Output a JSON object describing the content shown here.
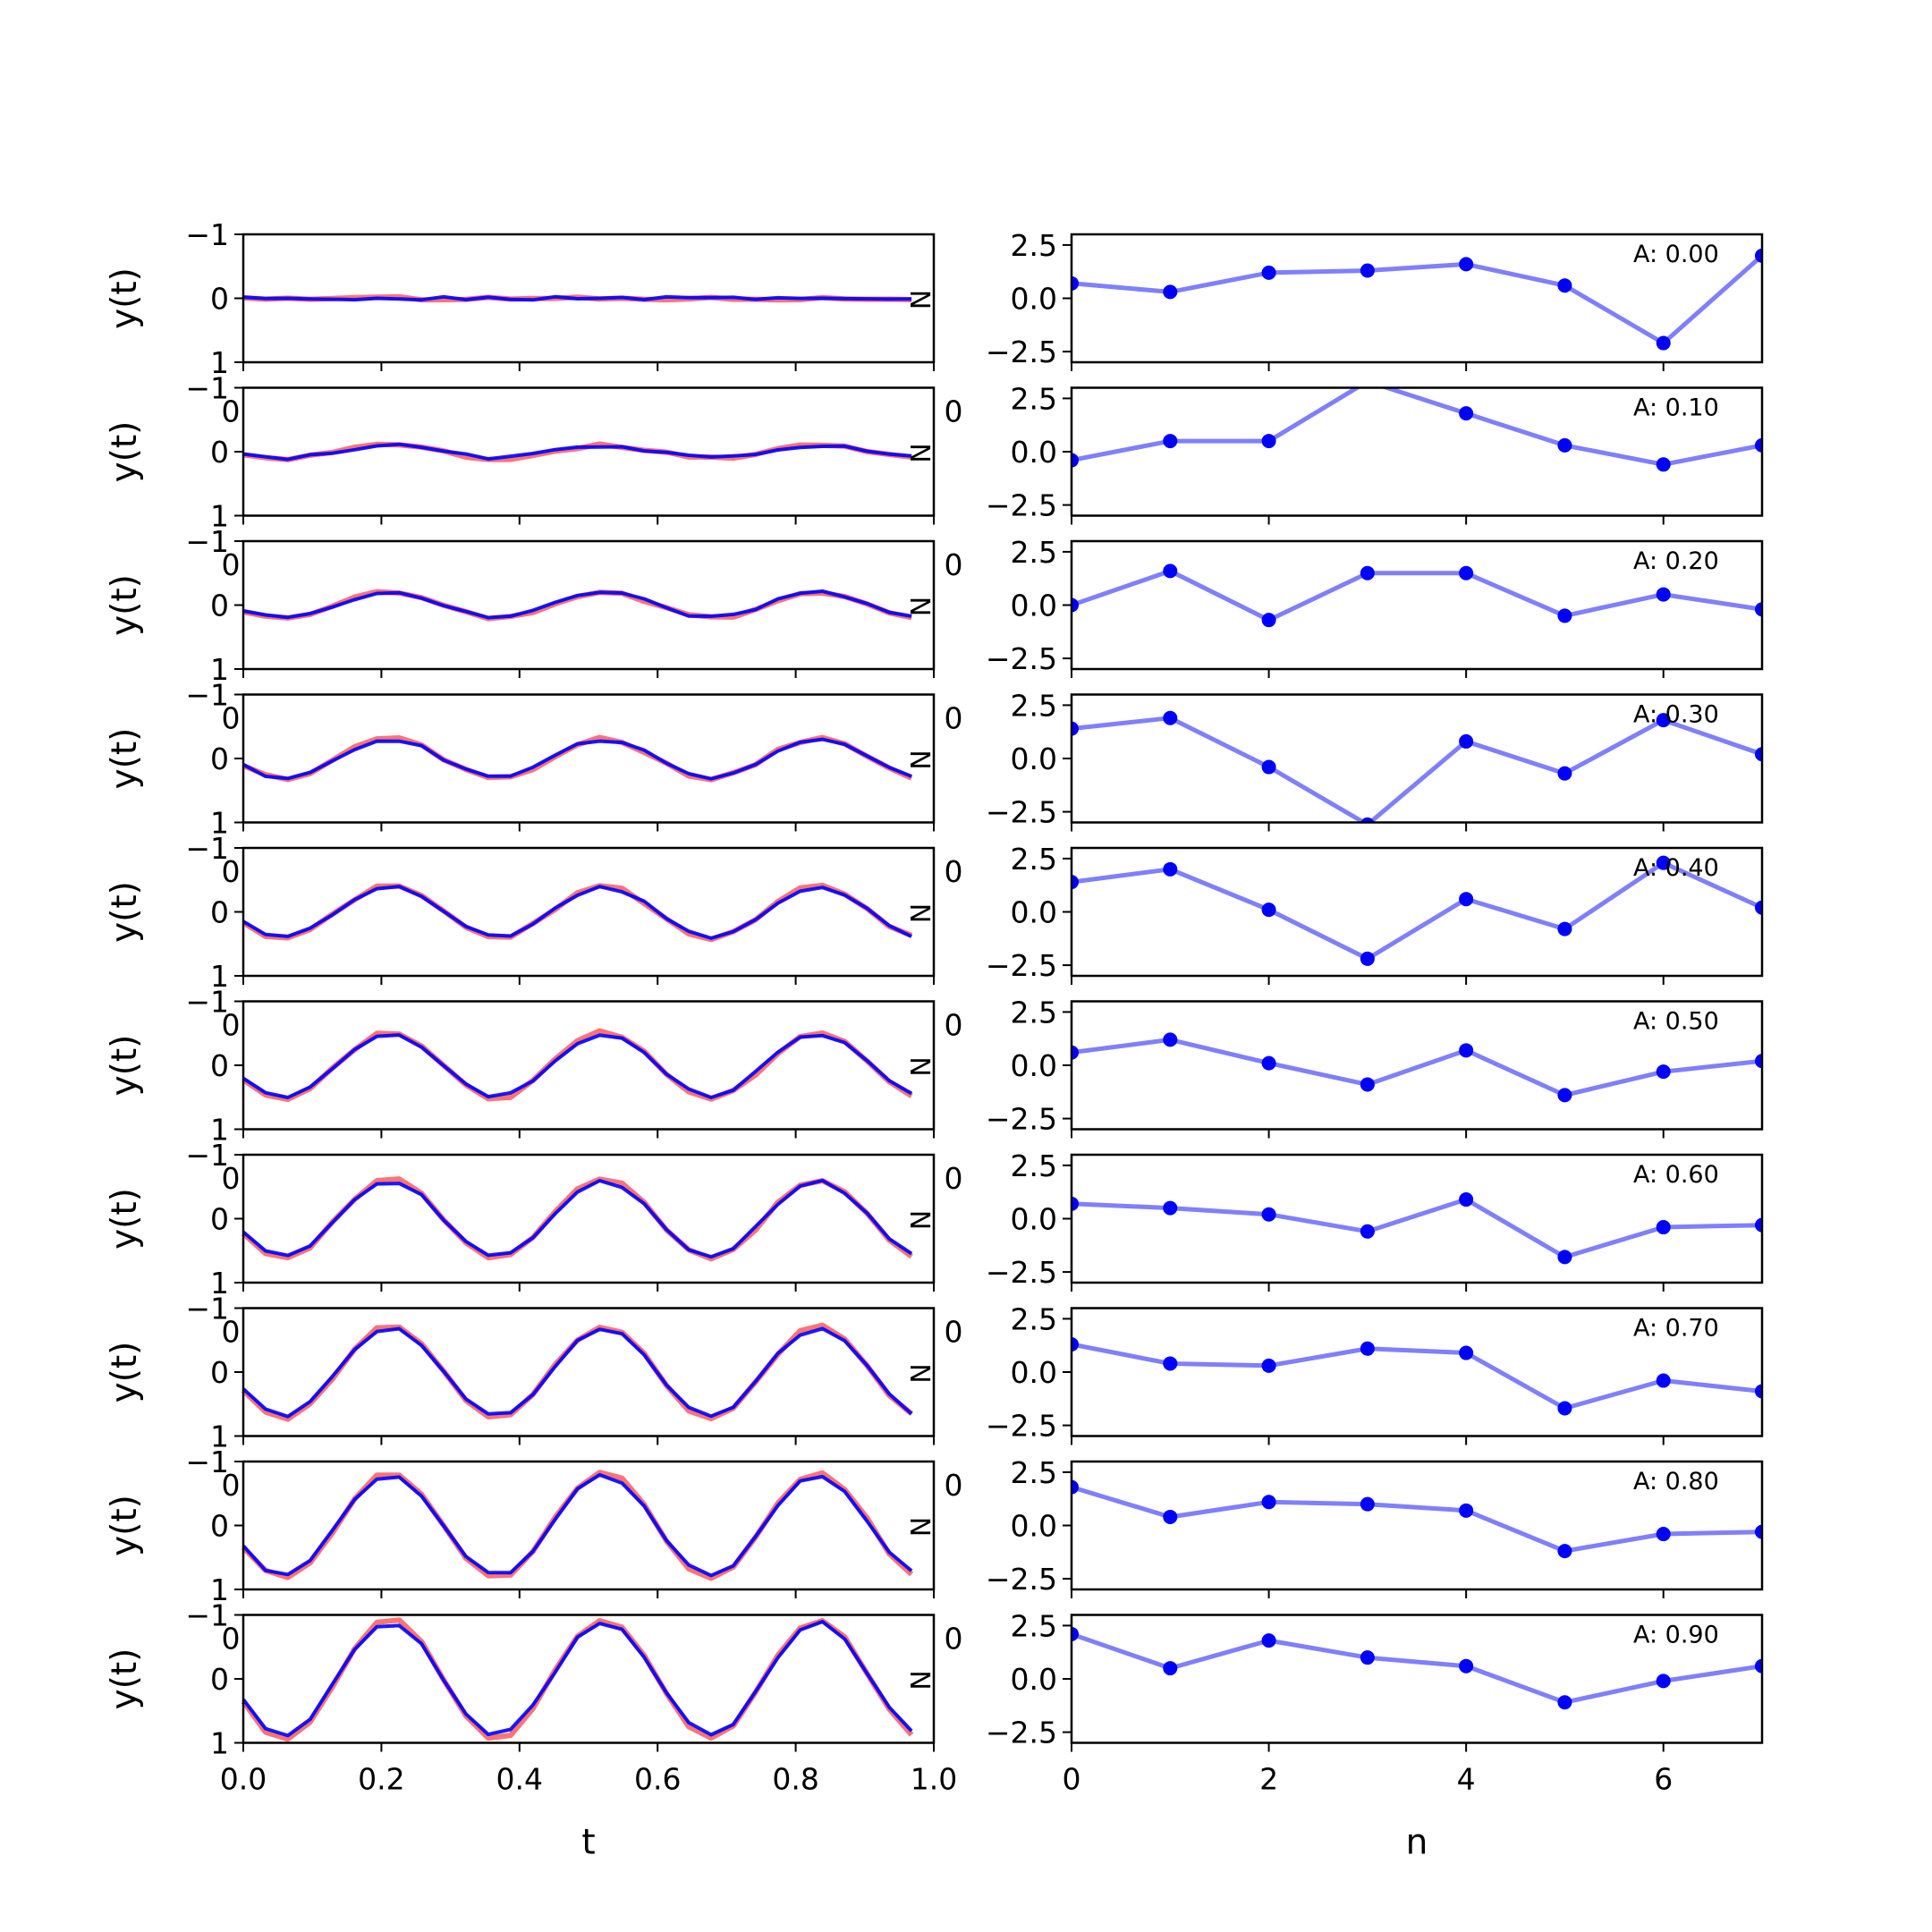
{
  "chart_data": [
    {
      "type": "line",
      "panel": "left",
      "xlabel": "t",
      "ylabel": "y(t)",
      "xlim": [
        0,
        1
      ],
      "ylim": [
        -1,
        1
      ],
      "xticks": [
        "0.0",
        "0.2",
        "0.4",
        "0.6",
        "0.8",
        "1.0"
      ],
      "yticks": [
        "−1",
        "0",
        "1"
      ],
      "row_stub_label": "0",
      "end_marker": "N",
      "x": [
        0,
        0.0323,
        0.0645,
        0.0968,
        0.129,
        0.1613,
        0.1935,
        0.2258,
        0.2581,
        0.2903,
        0.3226,
        0.3548,
        0.3871,
        0.4194,
        0.4516,
        0.4839,
        0.5161,
        0.5484,
        0.5806,
        0.6129,
        0.6452,
        0.6774,
        0.7097,
        0.7419,
        0.7742,
        0.8065,
        0.8387,
        0.871,
        0.9032,
        0.9355,
        0.9677
      ],
      "series": [
        {
          "name": "",
          "color": "#ff0000",
          "alpha": 0.55
        },
        {
          "name": "",
          "color": "#0000ff",
          "alpha": 0.9
        }
      ],
      "rows": [
        {
          "amplitude": 0.0,
          "noise": 0.02
        },
        {
          "amplitude": 0.1,
          "noise": 0.02
        },
        {
          "amplitude": 0.2,
          "noise": 0.02
        },
        {
          "amplitude": 0.3,
          "noise": 0.02
        },
        {
          "amplitude": 0.4,
          "noise": 0.02
        },
        {
          "amplitude": 0.5,
          "noise": 0.02
        },
        {
          "amplitude": 0.6,
          "noise": 0.02
        },
        {
          "amplitude": 0.7,
          "noise": 0.02
        },
        {
          "amplitude": 0.8,
          "noise": 0.02
        },
        {
          "amplitude": 0.9,
          "noise": 0.02
        }
      ]
    },
    {
      "type": "line",
      "panel": "right",
      "xlabel": "n",
      "ylabel": "",
      "xlim": [
        0,
        7
      ],
      "ylim": [
        -3,
        3
      ],
      "xticks": [
        "0",
        "2",
        "4",
        "6"
      ],
      "yticks": [
        "2.5",
        "0.0",
        "−2.5"
      ],
      "row_stub_label": "0",
      "marker_color": "#0000ff",
      "line_color": "#0000ff",
      "line_alpha": 0.5,
      "x": [
        0,
        1,
        2,
        3,
        4,
        5,
        6,
        7
      ],
      "rows": [
        {
          "label": "A: 0.00",
          "values": [
            0.7,
            0.3,
            1.2,
            1.3,
            1.6,
            0.6,
            -2.1,
            2.0
          ]
        },
        {
          "label": "A: 0.10",
          "values": [
            -0.4,
            0.5,
            0.5,
            3.3,
            1.8,
            0.3,
            -0.6,
            0.3
          ]
        },
        {
          "label": "A: 0.20",
          "values": [
            0.0,
            1.6,
            -0.7,
            1.5,
            1.5,
            -0.5,
            0.5,
            -0.2
          ]
        },
        {
          "label": "A: 0.30",
          "values": [
            1.4,
            1.9,
            -0.4,
            -3.1,
            0.8,
            -0.7,
            1.8,
            0.2
          ]
        },
        {
          "label": "A: 0.40",
          "values": [
            1.4,
            2.0,
            0.1,
            -2.2,
            0.6,
            -0.8,
            2.3,
            0.2
          ]
        },
        {
          "label": "A: 0.50",
          "values": [
            0.6,
            1.2,
            0.1,
            -0.9,
            0.7,
            -1.4,
            -0.3,
            0.2
          ]
        },
        {
          "label": "A: 0.60",
          "values": [
            0.7,
            0.5,
            0.2,
            -0.6,
            0.9,
            -1.8,
            -0.4,
            -0.3
          ]
        },
        {
          "label": "A: 0.70",
          "values": [
            1.3,
            0.4,
            0.3,
            1.1,
            0.9,
            -1.7,
            -0.4,
            -0.9
          ]
        },
        {
          "label": "A: 0.80",
          "values": [
            1.8,
            0.4,
            1.1,
            1.0,
            0.7,
            -1.2,
            -0.4,
            -0.3
          ]
        },
        {
          "label": "A: 0.90",
          "values": [
            2.1,
            0.5,
            1.8,
            1.0,
            0.6,
            -1.1,
            -0.1,
            0.6
          ]
        }
      ]
    }
  ]
}
